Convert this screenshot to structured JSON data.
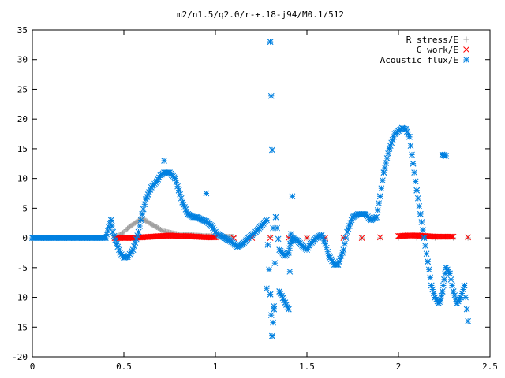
{
  "chart_data": {
    "type": "scatter",
    "title": "m2/n1.5/q2.0/r-+.18-j94/M0.1/512",
    "xlabel": "",
    "ylabel": "",
    "xlim": [
      0,
      2.5
    ],
    "ylim": [
      -20,
      35
    ],
    "x_ticks": [
      0,
      0.5,
      1,
      1.5,
      2,
      2.5
    ],
    "x_tick_labels": [
      "0",
      "0.5",
      "1",
      "1.5",
      "2",
      "2.5"
    ],
    "y_ticks": [
      -20,
      -15,
      -10,
      -5,
      0,
      5,
      10,
      15,
      20,
      25,
      30,
      35
    ],
    "y_tick_labels": [
      "-20",
      "-15",
      "-10",
      "-5",
      "0",
      "5",
      "10",
      "15",
      "20",
      "25",
      "30",
      "35"
    ],
    "grid": false,
    "legend_position": "top-right",
    "series": [
      {
        "name": "R stress/E",
        "marker": "plus",
        "color": "#a0a0a0",
        "x": [
          0.45,
          0.48,
          0.5,
          0.52,
          0.55,
          0.58,
          0.6,
          0.62,
          0.65,
          0.68,
          0.7,
          0.72,
          0.75,
          0.78,
          0.8,
          0.85,
          0.9,
          0.95,
          1.0,
          1.05,
          1.1,
          1.2,
          1.3,
          1.4,
          1.5,
          1.6,
          1.7,
          1.8,
          1.9,
          2.0,
          2.1,
          2.2,
          2.3,
          2.38
        ],
        "y": [
          0.2,
          0.5,
          1.0,
          1.6,
          2.3,
          2.9,
          3.2,
          2.9,
          2.3,
          1.8,
          1.4,
          1.1,
          0.9,
          0.7,
          0.6,
          0.5,
          0.4,
          0.3,
          0.3,
          0.2,
          0.2,
          0.1,
          0.1,
          0.1,
          0.0,
          0.0,
          0.0,
          0.0,
          0.0,
          0.0,
          0.0,
          0.0,
          0.0,
          0.0
        ]
      },
      {
        "name": "G work/E",
        "marker": "cross",
        "color": "#ff0000",
        "x": [
          0.45,
          0.5,
          0.55,
          0.6,
          0.65,
          0.7,
          0.75,
          0.8,
          0.85,
          0.9,
          0.95,
          1.0,
          1.1,
          1.2,
          1.3,
          1.4,
          1.5,
          1.6,
          1.7,
          1.8,
          1.9,
          2.0,
          2.05,
          2.1,
          2.15,
          2.2,
          2.25,
          2.3,
          2.38
        ],
        "y": [
          0.0,
          0.0,
          0.0,
          0.1,
          0.2,
          0.3,
          0.4,
          0.3,
          0.3,
          0.2,
          0.1,
          0.1,
          0.0,
          0.0,
          0.0,
          0.0,
          0.0,
          0.0,
          0.0,
          0.0,
          0.1,
          0.3,
          0.4,
          0.4,
          0.3,
          0.2,
          0.2,
          0.2,
          0.1
        ]
      },
      {
        "name": "Acoustic flux/E",
        "marker": "star",
        "color": "#0080e0",
        "x": [
          0.0,
          0.05,
          0.1,
          0.15,
          0.2,
          0.25,
          0.3,
          0.35,
          0.4,
          0.43,
          0.44,
          0.46,
          0.48,
          0.5,
          0.52,
          0.55,
          0.58,
          0.6,
          0.62,
          0.65,
          0.68,
          0.7,
          0.72,
          0.75,
          0.78,
          0.8,
          0.82,
          0.85,
          0.88,
          0.9,
          0.93,
          0.95,
          0.98,
          1.0,
          1.02,
          1.05,
          1.08,
          1.1,
          1.12,
          1.15,
          1.18,
          1.2,
          1.22,
          1.25,
          1.28,
          1.3,
          1.31,
          1.32,
          1.33,
          1.35,
          1.38,
          1.4,
          1.41,
          1.42,
          1.45,
          1.48,
          1.5,
          1.52,
          1.55,
          1.58,
          1.6,
          1.62,
          1.65,
          1.67,
          1.7,
          1.72,
          1.75,
          1.78,
          1.8,
          1.82,
          1.85,
          1.88,
          1.9,
          1.92,
          1.95,
          1.98,
          2.0,
          2.02,
          2.04,
          2.06,
          2.08,
          2.1,
          2.12,
          2.14,
          2.16,
          2.18,
          2.2,
          2.22,
          2.23,
          2.24,
          2.25,
          2.26,
          2.28,
          2.3,
          2.32,
          2.34,
          2.36,
          2.38,
          0.72,
          0.95,
          1.3,
          1.31,
          1.32,
          1.28,
          1.35,
          1.4,
          1.42,
          2.24,
          2.26
        ],
        "y": [
          0.0,
          0.0,
          0.0,
          0.0,
          0.0,
          0.0,
          0.0,
          0.0,
          0.0,
          3.0,
          1.0,
          -1.0,
          -2.5,
          -3.3,
          -3.2,
          -2.0,
          1.0,
          4.0,
          6.5,
          8.5,
          9.5,
          10.5,
          11.0,
          11.0,
          10.0,
          8.0,
          6.0,
          4.0,
          3.5,
          3.5,
          3.0,
          2.8,
          2.0,
          1.0,
          0.5,
          0.0,
          -0.5,
          -1.0,
          -1.5,
          -1.0,
          0.0,
          0.5,
          1.0,
          2.0,
          3.0,
          -9.5,
          -16.5,
          -12.0,
          3.5,
          -2.0,
          -3.0,
          -2.5,
          -1.0,
          0.0,
          -0.5,
          -1.5,
          -2.0,
          -1.0,
          0.0,
          0.5,
          -1.0,
          -3.0,
          -4.5,
          -4.5,
          -2.0,
          1.0,
          3.5,
          4.0,
          4.0,
          4.0,
          3.0,
          3.5,
          7.0,
          11.0,
          15.0,
          17.5,
          18.0,
          18.5,
          18.3,
          17.0,
          12.5,
          8.0,
          4.0,
          0.0,
          -4.0,
          -8.0,
          -10.0,
          -11.0,
          -10.5,
          -9.0,
          -7.0,
          -5.0,
          -6.0,
          -9.0,
          -11.0,
          -10.0,
          -8.0,
          -14.0,
          13.0,
          7.5,
          33.0,
          14.8,
          -11.5,
          -8.5,
          -9.0,
          -12.0,
          7.0,
          14.0,
          13.8
        ]
      }
    ]
  }
}
